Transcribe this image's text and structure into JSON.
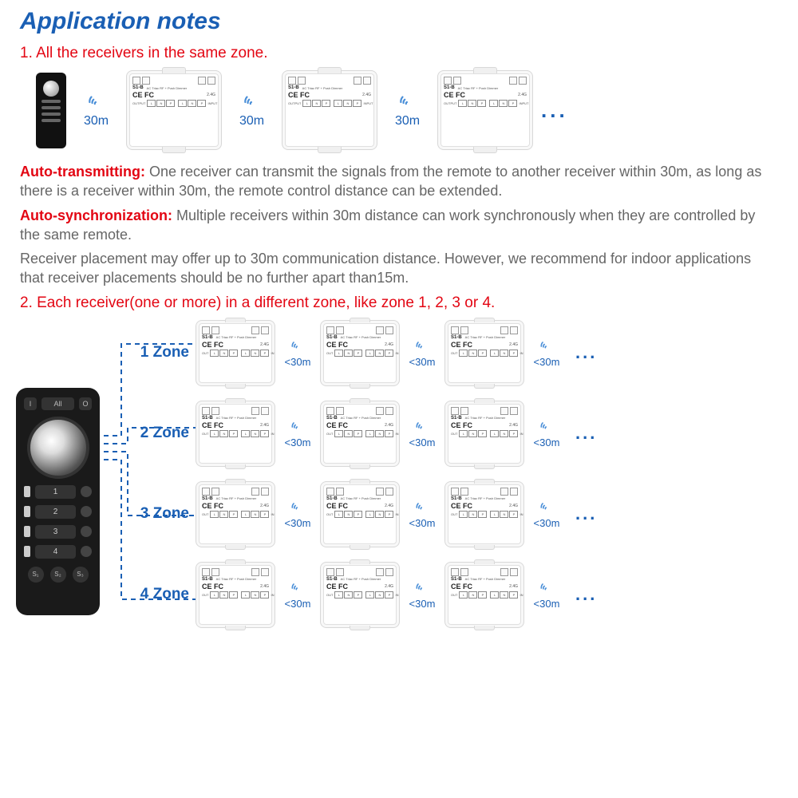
{
  "colors": {
    "title_blue": "#1a5fb4",
    "red": "#e30613",
    "grey_text": "#666666",
    "module_bg": "#f8f8f8",
    "wifi_blue": "#4a8fd8",
    "dash_blue": "#1a5fb4"
  },
  "title": "Application notes",
  "heading1": "1. All the receivers in the same zone.",
  "row1": {
    "distance_label": "30m",
    "module_model": "S1-B",
    "module_desc": "AC Triac RF + Push Dimmer",
    "freq": "2.4G",
    "terminals_out": [
      "L",
      "N",
      "P"
    ],
    "terminals_in": [
      "L",
      "N",
      "P"
    ],
    "ellipsis": "..."
  },
  "auto_transmit": {
    "lead": "Auto-transmitting:",
    "text": " One receiver can transmit the signals from the remote to another receiver within 30m, as long as there is a receiver within 30m, the remote control distance can be extended."
  },
  "auto_sync": {
    "lead": "Auto-synchronization:",
    "text": " Multiple receivers within 30m distance can work synchronously when they are controlled by the same remote."
  },
  "placement_note": "Receiver placement may offer up to 30m communication distance. However, we recommend for indoor applications that receiver placements should be no further apart than15m.",
  "heading2": "2. Each receiver(one or more) in a different zone, like zone 1, 2, 3 or 4.",
  "zones": {
    "distance_label": "<30m",
    "labels": [
      "1 Zone",
      "2 Zone",
      "3 Zone",
      "4 Zone"
    ],
    "ellipsis": "..."
  },
  "remote_large": {
    "all": "All",
    "zone_nums": [
      "1",
      "2",
      "3",
      "4"
    ],
    "scenes": [
      "S₁",
      "S₂",
      "S₃"
    ]
  }
}
